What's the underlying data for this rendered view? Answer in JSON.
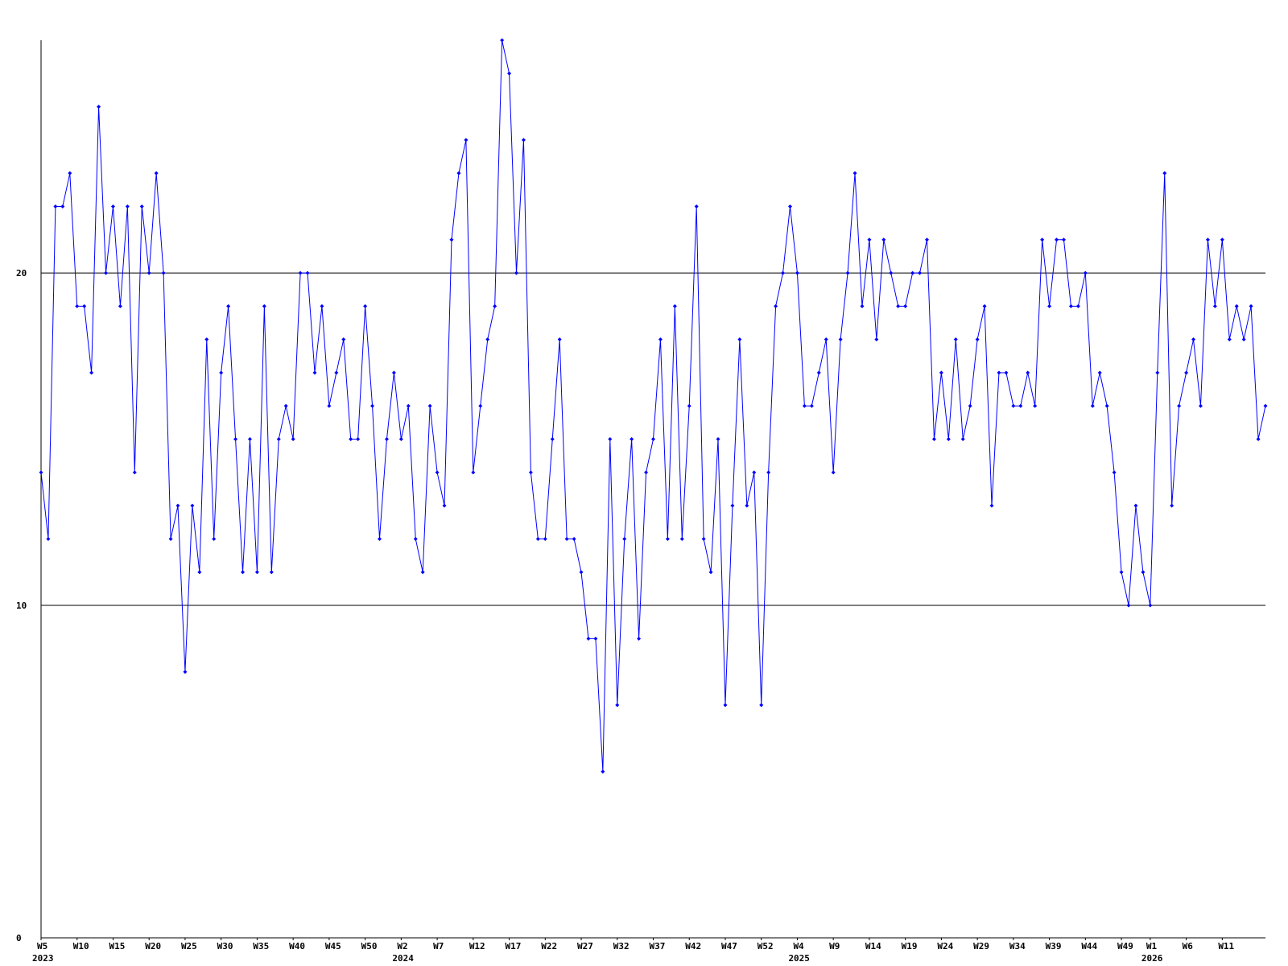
{
  "chart_data": {
    "type": "line",
    "color": "#0000ff",
    "ylim": [
      0,
      27
    ],
    "yticks": [
      0,
      10,
      20
    ],
    "grid": true,
    "categories": [
      "W5",
      null,
      null,
      null,
      null,
      "W10",
      null,
      null,
      null,
      null,
      "W15",
      null,
      null,
      null,
      null,
      "W20",
      null,
      null,
      null,
      null,
      "W25",
      null,
      null,
      null,
      null,
      "W30",
      null,
      null,
      null,
      null,
      "W35",
      null,
      null,
      null,
      null,
      "W40",
      null,
      null,
      null,
      null,
      "W45",
      null,
      null,
      null,
      null,
      "W50",
      null,
      null,
      null,
      null,
      "W2",
      null,
      null,
      null,
      null,
      "W7",
      null,
      null,
      null,
      null,
      "W12",
      null,
      null,
      null,
      null,
      "W17",
      null,
      null,
      null,
      null,
      "W22",
      null,
      null,
      null,
      null,
      "W27",
      null,
      null,
      null,
      null,
      "W32",
      null,
      null,
      null,
      null,
      "W37",
      null,
      null,
      null,
      null,
      "W42",
      null,
      null,
      null,
      null,
      "W47",
      null,
      null,
      null,
      null,
      "W52",
      null,
      null,
      null,
      null,
      "W4",
      null,
      null,
      null,
      null,
      "W9",
      null,
      null,
      null,
      null,
      "W14",
      null,
      null,
      null,
      null,
      "W19",
      null,
      null,
      null,
      null,
      "W24",
      null,
      null,
      null,
      null,
      "W29",
      null,
      null,
      null,
      null,
      "W34",
      null,
      null,
      null,
      null,
      "W39",
      null,
      null,
      null,
      null,
      "W44",
      null,
      null,
      null,
      null,
      "W49",
      null,
      null,
      null,
      "W1",
      null,
      null,
      null,
      null,
      "W6",
      null,
      null,
      null,
      null,
      "W11",
      null,
      null,
      null,
      null,
      null,
      null
    ],
    "years": [
      "2023",
      null,
      null,
      null,
      null,
      null,
      null,
      null,
      null,
      null,
      null,
      null,
      null,
      null,
      null,
      null,
      null,
      null,
      null,
      null,
      null,
      null,
      null,
      null,
      null,
      null,
      null,
      null,
      null,
      null,
      null,
      null,
      null,
      null,
      null,
      null,
      null,
      null,
      null,
      null,
      null,
      null,
      null,
      null,
      null,
      null,
      null,
      null,
      null,
      null,
      "2024",
      null,
      null,
      null,
      null,
      null,
      null,
      null,
      null,
      null,
      null,
      null,
      null,
      null,
      null,
      null,
      null,
      null,
      null,
      null,
      null,
      null,
      null,
      null,
      null,
      null,
      null,
      null,
      null,
      null,
      null,
      null,
      null,
      null,
      null,
      null,
      null,
      null,
      null,
      null,
      null,
      null,
      null,
      null,
      null,
      null,
      null,
      null,
      null,
      null,
      null,
      null,
      null,
      null,
      null,
      "2025",
      null,
      null,
      null,
      null,
      null,
      null,
      null,
      null,
      null,
      null,
      null,
      null,
      null,
      null,
      null,
      null,
      null,
      null,
      null,
      null,
      null,
      null,
      null,
      null,
      null,
      null,
      null,
      null,
      null,
      null,
      null,
      null,
      null,
      null,
      null,
      null,
      null,
      null,
      null,
      null,
      null,
      null,
      null,
      null,
      null,
      null,
      null,
      null,
      "2026",
      null,
      null,
      null,
      null,
      null,
      null,
      null,
      null,
      null,
      null,
      null,
      null,
      null,
      null,
      null,
      null
    ],
    "values": [
      14,
      12,
      22,
      22,
      23,
      19,
      19,
      17,
      25,
      20,
      22,
      19,
      22,
      14,
      22,
      20,
      23,
      20,
      12,
      13,
      8,
      13,
      11,
      18,
      12,
      17,
      19,
      15,
      11,
      15,
      11,
      19,
      11,
      15,
      16,
      15,
      20,
      20,
      17,
      19,
      16,
      17,
      18,
      15,
      15,
      19,
      16,
      12,
      15,
      17,
      15,
      16,
      12,
      11,
      16,
      14,
      13,
      21,
      23,
      24,
      14,
      16,
      18,
      19,
      27,
      26,
      20,
      24,
      14,
      12,
      12,
      15,
      18,
      12,
      12,
      11,
      9,
      9,
      5,
      15,
      7,
      12,
      15,
      9,
      14,
      15,
      18,
      12,
      19,
      12,
      16,
      22,
      12,
      11,
      15,
      7,
      13,
      18,
      13,
      14,
      7,
      14,
      19,
      20,
      22,
      20,
      16,
      16,
      17,
      18,
      14,
      18,
      20,
      23,
      19,
      21,
      18,
      21,
      20,
      19,
      19,
      20,
      20,
      21,
      15,
      17,
      15,
      18,
      15,
      16,
      18,
      19,
      13,
      17,
      17,
      16,
      16,
      17,
      16,
      21,
      19,
      21,
      21,
      19,
      19,
      20,
      16,
      17,
      16,
      14,
      11,
      10,
      13,
      11,
      10,
      17,
      23,
      13,
      16,
      17,
      18,
      16,
      21,
      19,
      21,
      18,
      19,
      18,
      19,
      15,
      16
    ]
  }
}
